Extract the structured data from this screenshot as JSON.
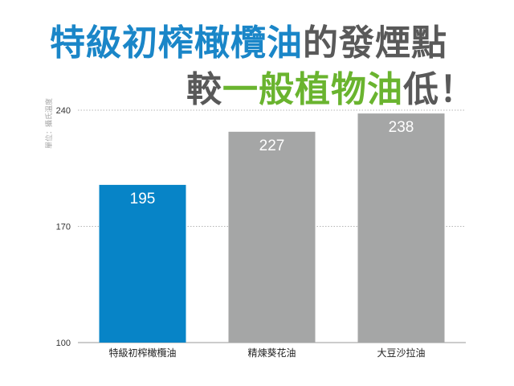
{
  "title": {
    "line1": [
      {
        "text": "特級初榨橄欖油",
        "color": "#1a86c8"
      },
      {
        "text": "的發煙點",
        "color": "#595959"
      }
    ],
    "line2": [
      {
        "text": "較",
        "color": "#595959"
      },
      {
        "text": "一般植物油",
        "color": "#6ab42f"
      },
      {
        "text": "低！",
        "color": "#595959"
      }
    ]
  },
  "chart_data": {
    "type": "bar",
    "categories": [
      "特級初榨橄欖油",
      "精煉葵花油",
      "大豆沙拉油"
    ],
    "values": [
      195,
      227,
      238
    ],
    "bar_colors": [
      "#0784c7",
      "#a5a6a6",
      "#a5a6a6"
    ],
    "ylabel": "單位：攝氏溫度",
    "ylim": [
      100,
      240
    ],
    "yticks": [
      100,
      170,
      240
    ],
    "grid": "dotted-horizontal",
    "data_labels": true
  }
}
